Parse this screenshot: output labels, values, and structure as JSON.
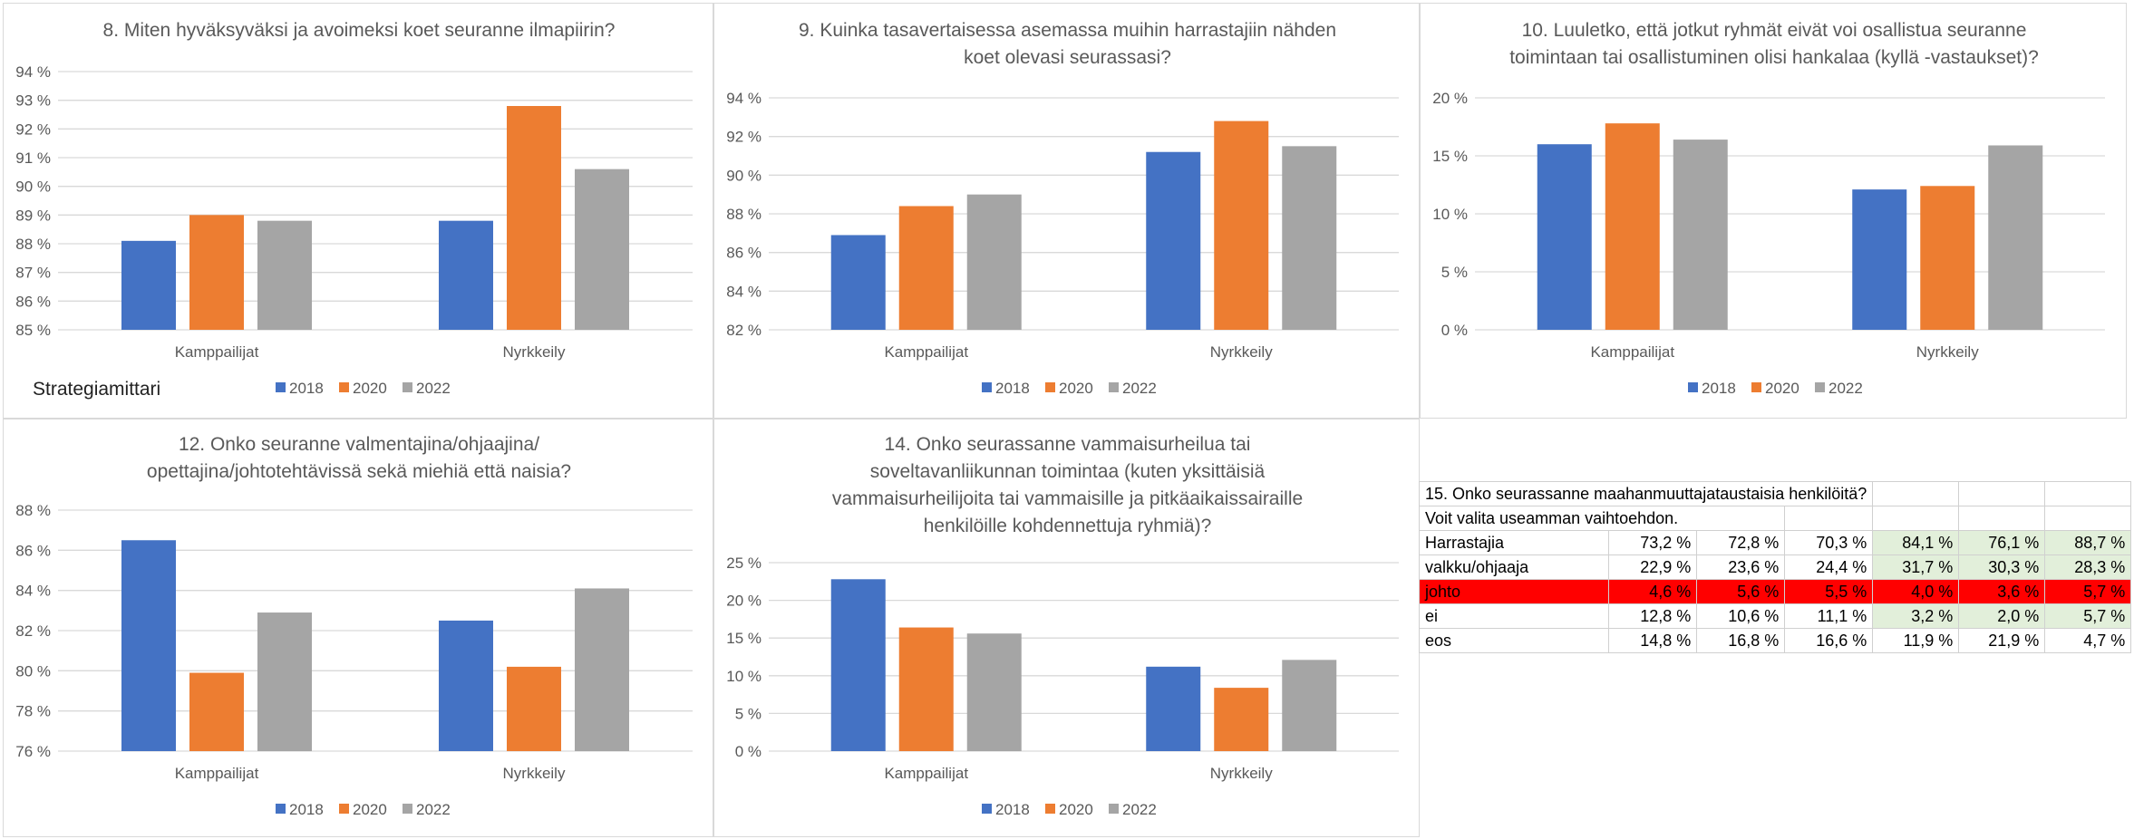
{
  "legend": [
    "2018",
    "2020",
    "2022"
  ],
  "colors": {
    "2018": "#4472c4",
    "2020": "#ed7d31",
    "2022": "#a5a5a5",
    "green_cell": "#e2efda",
    "red_row": "#ff0000"
  },
  "strategy_label": "Strategiamittari",
  "chart_data": [
    {
      "type": "bar",
      "title": [
        "8. Miten hyväksyväksi ja avoimeksi koet seuranne ilmapiirin?"
      ],
      "categories": [
        "Kamppailijat",
        "Nyrkkeily"
      ],
      "series": [
        {
          "name": "2018",
          "values": [
            88.1,
            88.8
          ]
        },
        {
          "name": "2020",
          "values": [
            89.0,
            92.8
          ]
        },
        {
          "name": "2022",
          "values": [
            88.8,
            90.6
          ]
        }
      ],
      "ylim": [
        85,
        94
      ],
      "ystep": 1,
      "yticks": [
        "85 %",
        "86 %",
        "87 %",
        "88 %",
        "89 %",
        "90 %",
        "91 %",
        "92 %",
        "93 %",
        "94 %"
      ],
      "legend_position": "bottom"
    },
    {
      "type": "bar",
      "title": [
        "9. Kuinka tasavertaisessa asemassa muihin harrastajiin nähden",
        "koet olevasi seurassasi?"
      ],
      "categories": [
        "Kamppailijat",
        "Nyrkkeily"
      ],
      "series": [
        {
          "name": "2018",
          "values": [
            86.9,
            91.2
          ]
        },
        {
          "name": "2020",
          "values": [
            88.4,
            92.8
          ]
        },
        {
          "name": "2022",
          "values": [
            89.0,
            91.5
          ]
        }
      ],
      "ylim": [
        82,
        94
      ],
      "ystep": 2,
      "yticks": [
        "82 %",
        "84 %",
        "86 %",
        "88 %",
        "90 %",
        "92 %",
        "94 %"
      ],
      "legend_position": "bottom"
    },
    {
      "type": "bar",
      "title": [
        "10. Luuletko, että jotkut ryhmät eivät voi osallistua seuranne",
        "toimintaan tai osallistuminen olisi hankalaa (kyllä -vastaukset)?"
      ],
      "categories": [
        "Kamppailijat",
        "Nyrkkeily"
      ],
      "series": [
        {
          "name": "2018",
          "values": [
            16.0,
            12.1
          ]
        },
        {
          "name": "2020",
          "values": [
            17.8,
            12.4
          ]
        },
        {
          "name": "2022",
          "values": [
            16.4,
            15.9
          ]
        }
      ],
      "ylim": [
        0,
        20
      ],
      "ystep": 5,
      "yticks": [
        "0 %",
        "5 %",
        "10 %",
        "15 %",
        "20 %"
      ],
      "legend_position": "bottom"
    },
    {
      "type": "bar",
      "title": [
        "12. Onko seuranne valmentajina/ohjaajina/",
        "opettajina/johtotehtävissä sekä miehiä että naisia?"
      ],
      "categories": [
        "Kamppailijat",
        "Nyrkkeily"
      ],
      "series": [
        {
          "name": "2018",
          "values": [
            86.5,
            82.5
          ]
        },
        {
          "name": "2020",
          "values": [
            79.9,
            80.2
          ]
        },
        {
          "name": "2022",
          "values": [
            82.9,
            84.1
          ]
        }
      ],
      "ylim": [
        76,
        88
      ],
      "ystep": 2,
      "yticks": [
        "76 %",
        "78 %",
        "80 %",
        "82 %",
        "84 %",
        "86 %",
        "88 %"
      ],
      "legend_position": "bottom"
    },
    {
      "type": "bar",
      "title": [
        "14. Onko seurassanne vammaisurheilua tai",
        "soveltavanliikunnan toimintaa (kuten yksittäisiä",
        "vammaisurheilijoita tai vammaisille ja pitkäaikaissairaille",
        "henkilöille kohdennettuja ryhmiä)?"
      ],
      "categories": [
        "Kamppailijat",
        "Nyrkkeily"
      ],
      "series": [
        {
          "name": "2018",
          "values": [
            22.8,
            11.2
          ]
        },
        {
          "name": "2020",
          "values": [
            16.4,
            8.4
          ]
        },
        {
          "name": "2022",
          "values": [
            15.6,
            12.1
          ]
        }
      ],
      "ylim": [
        0,
        25
      ],
      "ystep": 5,
      "yticks": [
        "0 %",
        "5 %",
        "10 %",
        "15 %",
        "20 %",
        "25 %"
      ],
      "legend_position": "bottom"
    },
    {
      "type": "table",
      "title": "15. Onko seurassanne maahanmuuttajataustaisia henkilöitä?",
      "subtitle": "Voit valita useamman vaihtoehdon.",
      "rows": [
        {
          "label": "Harrastajia",
          "values": [
            "73,2 %",
            "72,8 %",
            "70,3 %",
            "84,1 %",
            "76,1 %",
            "88,7 %"
          ]
        },
        {
          "label": "valkku/ohjaaja",
          "values": [
            "22,9 %",
            "23,6 %",
            "24,4 %",
            "31,7 %",
            "30,3 %",
            "28,3 %"
          ]
        },
        {
          "label": "johto",
          "values": [
            "4,6 %",
            "5,6 %",
            "5,5 %",
            "4,0 %",
            "3,6 %",
            "5,7 %"
          ]
        },
        {
          "label": "ei",
          "values": [
            "12,8 %",
            "10,6 %",
            "11,1 %",
            "3,2 %",
            "2,0 %",
            "5,7 %"
          ]
        },
        {
          "label": "eos",
          "values": [
            "14,8 %",
            "16,8 %",
            "16,6 %",
            "11,9 %",
            "21,9 %",
            "4,7 %"
          ]
        }
      ]
    }
  ]
}
